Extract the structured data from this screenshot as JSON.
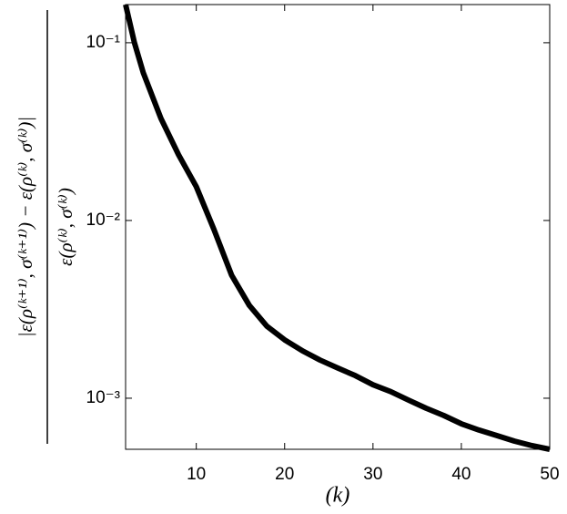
{
  "chart_data": {
    "type": "line",
    "xlabel": "(k)",
    "ylabel": {
      "numerator": "|ε(ρ⁽ᵏ⁺¹⁾, σ⁽ᵏ⁺¹⁾) − ε(ρ⁽ᵏ⁾, σ⁽ᵏ⁾)|",
      "denominator": "ε(ρ⁽ᵏ⁾, σ⁽ᵏ⁾)"
    },
    "x": [
      2,
      3,
      4,
      6,
      8,
      10,
      12,
      14,
      16,
      18,
      20,
      22,
      24,
      26,
      28,
      30,
      32,
      34,
      36,
      38,
      40,
      42,
      44,
      46,
      48,
      50
    ],
    "series": [
      {
        "color": "#000000",
        "values": [
          0.164,
          0.1,
          0.0678,
          0.0375,
          0.0234,
          0.0155,
          0.0089,
          0.00492,
          0.00333,
          0.00254,
          0.00213,
          0.00185,
          0.00164,
          0.00148,
          0.00134,
          0.00119,
          0.00109,
          0.000977,
          0.000879,
          0.0008,
          0.000718,
          0.000662,
          0.000617,
          0.000574,
          0.000541,
          0.000516
        ]
      }
    ],
    "xlim": [
      2,
      50
    ],
    "xticks": [
      10,
      20,
      30,
      40,
      50
    ],
    "ylim": [
      0.000516,
      0.164
    ],
    "ylog": true,
    "yticks": [
      {
        "value": 0.001,
        "label": "10⁻³"
      },
      {
        "value": 0.01,
        "label": "10⁻²"
      },
      {
        "value": 0.1,
        "label": "10⁻¹"
      }
    ],
    "grid": false
  }
}
